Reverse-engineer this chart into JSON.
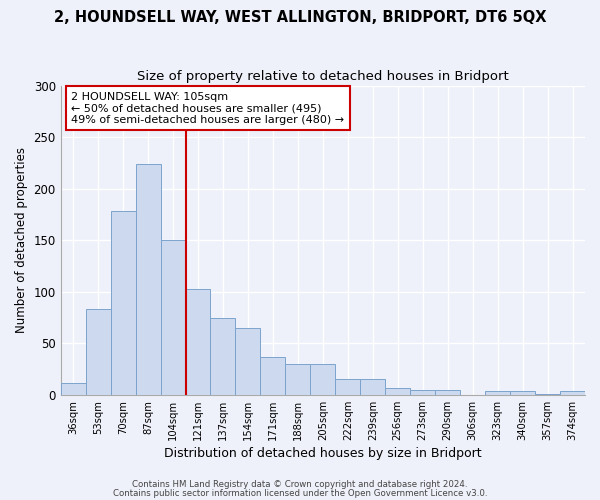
{
  "title": "2, HOUNDSELL WAY, WEST ALLINGTON, BRIDPORT, DT6 5QX",
  "subtitle": "Size of property relative to detached houses in Bridport",
  "xlabel": "Distribution of detached houses by size in Bridport",
  "ylabel": "Number of detached properties",
  "bar_labels": [
    "36sqm",
    "53sqm",
    "70sqm",
    "87sqm",
    "104sqm",
    "121sqm",
    "137sqm",
    "154sqm",
    "171sqm",
    "188sqm",
    "205sqm",
    "222sqm",
    "239sqm",
    "256sqm",
    "273sqm",
    "290sqm",
    "306sqm",
    "323sqm",
    "340sqm",
    "357sqm",
    "374sqm"
  ],
  "bar_values": [
    11,
    83,
    178,
    224,
    150,
    103,
    75,
    65,
    37,
    30,
    30,
    15,
    15,
    7,
    5,
    5,
    0,
    4,
    4,
    1,
    4
  ],
  "bar_color": "#ccd9ee",
  "bar_edgecolor": "#7ba3cc",
  "vline_color": "#cc0000",
  "annotation_text": "2 HOUNDSELL WAY: 105sqm\n← 50% of detached houses are smaller (495)\n49% of semi-detached houses are larger (480) →",
  "annotation_box_color": "white",
  "annotation_box_edgecolor": "#cc0000",
  "ylim": [
    0,
    300
  ],
  "yticks": [
    0,
    50,
    100,
    150,
    200,
    250,
    300
  ],
  "footer1": "Contains HM Land Registry data © Crown copyright and database right 2024.",
  "footer2": "Contains public sector information licensed under the Open Government Licence v3.0.",
  "background_color": "#eef1f9",
  "grid_color": "white",
  "title_fontsize": 10.5,
  "subtitle_fontsize": 9.5
}
